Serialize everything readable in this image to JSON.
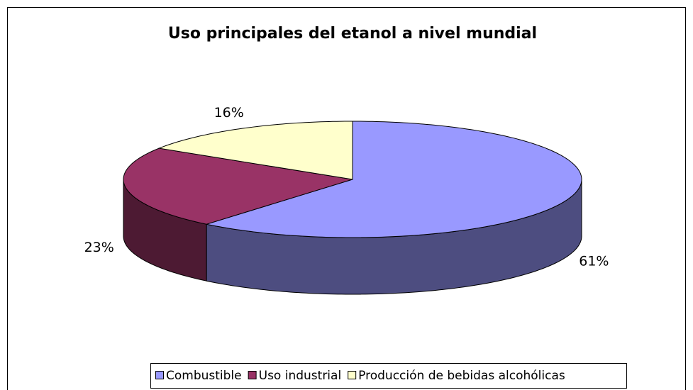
{
  "chart_data": {
    "type": "pie",
    "title": "Uso principales del etanol a nivel mundial",
    "categories": [
      "Combustible",
      "Uso industrial",
      "Producción de bebidas alcohólicas"
    ],
    "values": [
      61,
      23,
      16
    ],
    "value_labels": [
      "61%",
      "23%",
      "16%"
    ],
    "colors": [
      "#9999ff",
      "#993366",
      "#ffffcc"
    ],
    "legend": "bottom"
  }
}
